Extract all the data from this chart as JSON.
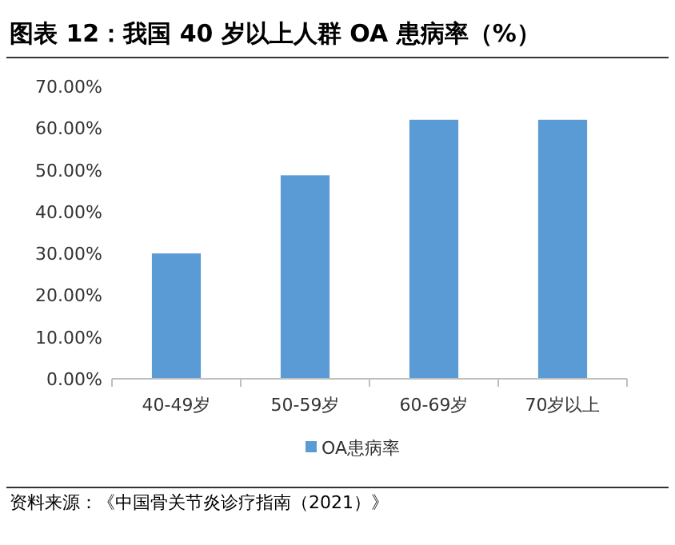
{
  "chart_data": {
    "type": "bar",
    "title": "图表 12：我国 40 岁以上人群 OA 患病率（%）",
    "categories": [
      "40-49岁",
      "50-59岁",
      "60-69岁",
      "70岁以上"
    ],
    "series": [
      {
        "name": "OA患病率",
        "color": "#5b9bd5",
        "values": [
          30,
          48.7,
          62,
          62
        ]
      }
    ],
    "ylim": [
      0,
      70
    ],
    "yticks": [
      {
        "value": 0,
        "label": "0.00%"
      },
      {
        "value": 10,
        "label": "10.00%"
      },
      {
        "value": 20,
        "label": "20.00%"
      },
      {
        "value": 30,
        "label": "30.00%"
      },
      {
        "value": 40,
        "label": "40.00%"
      },
      {
        "value": 50,
        "label": "50.00%"
      },
      {
        "value": 60,
        "label": "60.00%"
      },
      {
        "value": 70,
        "label": "70.00%"
      }
    ],
    "legend": "bottom",
    "annotations": [
      "资料来源：《中国骨关节炎诊疗指南（2021）》"
    ]
  }
}
